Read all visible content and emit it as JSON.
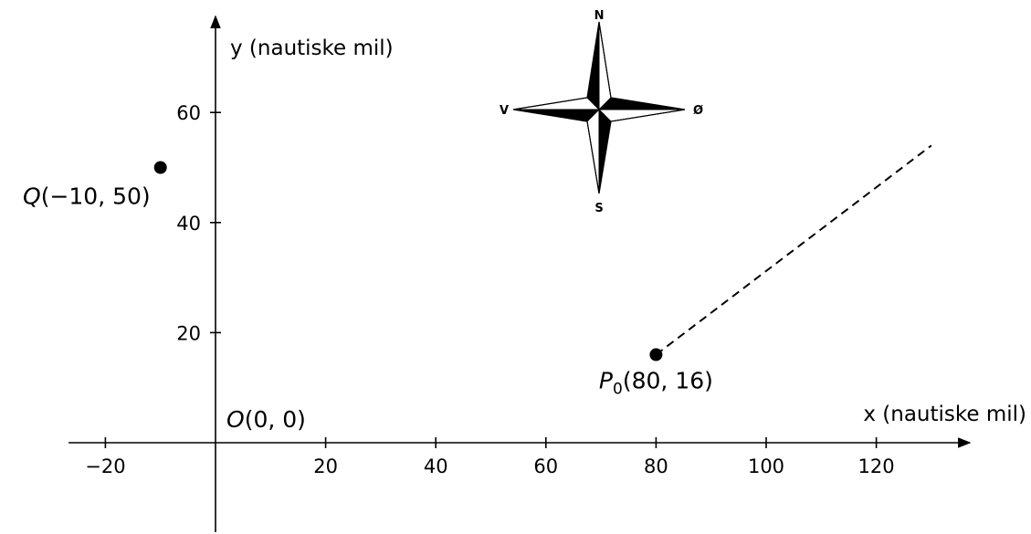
{
  "diagram": {
    "x_axis": {
      "title": "x (nautiske mil)",
      "range": [
        -30,
        138
      ],
      "ticks": [
        -20,
        20,
        40,
        60,
        80,
        100,
        120
      ],
      "tick_labels": [
        "−20",
        "20",
        "40",
        "60",
        "80",
        "100",
        "120"
      ]
    },
    "y_axis": {
      "title": "y (nautiske mil)",
      "range": [
        -16,
        77
      ],
      "ticks": [
        20,
        40,
        60
      ],
      "tick_labels": [
        "20",
        "40",
        "60"
      ]
    },
    "points": {
      "origin": {
        "x": 0,
        "y": 0,
        "letter": "O",
        "coords": "(0, 0)"
      },
      "Q": {
        "x": -10,
        "y": 50,
        "letter": "Q",
        "coords": "(−10, 50)"
      },
      "P0": {
        "x": 80,
        "y": 16,
        "letter": "P",
        "subscript": "0",
        "coords": "(80, 16)"
      }
    },
    "dashed_path": {
      "from": [
        80,
        16
      ],
      "to": [
        130,
        54
      ]
    },
    "compass": {
      "north": "N",
      "south": "S",
      "east": "Ø",
      "west": "V"
    }
  }
}
